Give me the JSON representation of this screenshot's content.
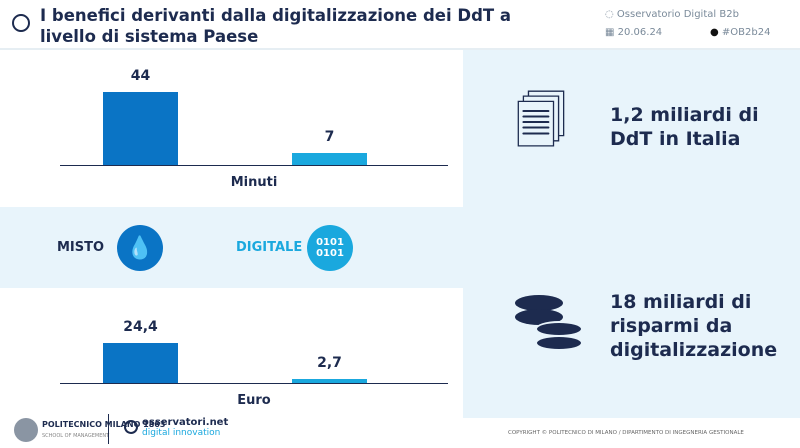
{
  "header": {
    "title": "I benefici derivanti dalla digitalizzazione dei DdT a livello di sistema Paese",
    "source": "Osservatorio Digital B2b",
    "date": "20.06.24",
    "hashtag": "#OB2b24"
  },
  "legend": {
    "misto": "MISTO",
    "digitale": "DIGITALE",
    "digital_icon_text": "0101 0101",
    "colors": {
      "misto": "#0a74c5",
      "digitale": "#1aa8de"
    }
  },
  "right": {
    "stat1": "1,2 miliardi di DdT in Italia",
    "stat2": "18 miliardi di risparmi da digitalizzazione"
  },
  "footer": {
    "logo1": "POLITECNICO MILANO 1863",
    "logo1_sub": "SCHOOL OF MANAGEMENT",
    "logo2": "osservatori.net",
    "logo2_sub": "digital innovation",
    "copyright": "COPYRIGHT © POLITECNICO DI MILANO / DIPARTIMENTO DI INGEGNERIA GESTIONALE"
  },
  "chart_data": [
    {
      "type": "bar",
      "xlabel": "Minuti",
      "categories": [
        "Misto",
        "Digitale"
      ],
      "values": [
        44,
        7
      ],
      "labels": [
        "44",
        "7"
      ],
      "colors": [
        "#0a74c5",
        "#1aa8de"
      ]
    },
    {
      "type": "bar",
      "xlabel": "Euro",
      "categories": [
        "Misto",
        "Digitale"
      ],
      "values": [
        24.4,
        2.7
      ],
      "labels": [
        "24,4",
        "2,7"
      ],
      "colors": [
        "#0a74c5",
        "#1aa8de"
      ]
    }
  ]
}
